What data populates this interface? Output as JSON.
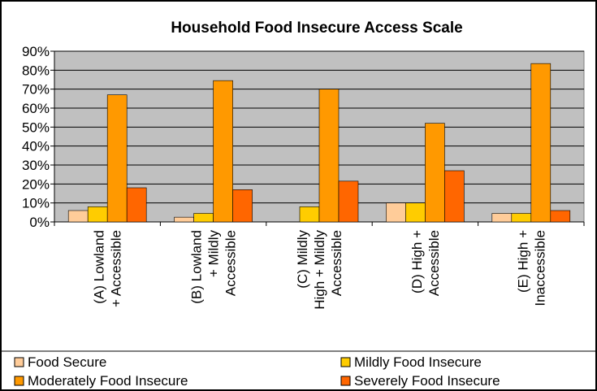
{
  "chart_data": {
    "type": "bar",
    "title": "Household Food Insecure Access Scale",
    "xlabel": "",
    "ylabel": "",
    "ylim": [
      0,
      90
    ],
    "yticks": [
      "0%",
      "10%",
      "20%",
      "30%",
      "40%",
      "50%",
      "60%",
      "70%",
      "80%",
      "90%"
    ],
    "grid": true,
    "legend_position": "bottom",
    "categories": [
      [
        "(A) Lowland",
        "+ Accessible"
      ],
      [
        "(B) Lowland",
        "+ Mildly",
        "Accessible"
      ],
      [
        "(C) Mildly",
        "High + Mildly",
        "Accessible"
      ],
      [
        "(D) High +",
        "Accessible"
      ],
      [
        "(E) High +",
        "Inaccessible"
      ]
    ],
    "series": [
      {
        "name": "Food Secure",
        "color": "#ffcc99",
        "values": [
          6,
          2.5,
          0,
          10,
          4.5
        ]
      },
      {
        "name": "Mildly Food Insecure",
        "color": "#ffcc00",
        "values": [
          8,
          4.5,
          8,
          10,
          4.5
        ]
      },
      {
        "name": "Moderately Food Insecure",
        "color": "#ff9900",
        "values": [
          67,
          74.5,
          70,
          52,
          83.5
        ]
      },
      {
        "name": "Severely Food Insecure",
        "color": "#ff6600",
        "values": [
          18,
          17,
          21.5,
          27,
          6
        ]
      }
    ]
  }
}
